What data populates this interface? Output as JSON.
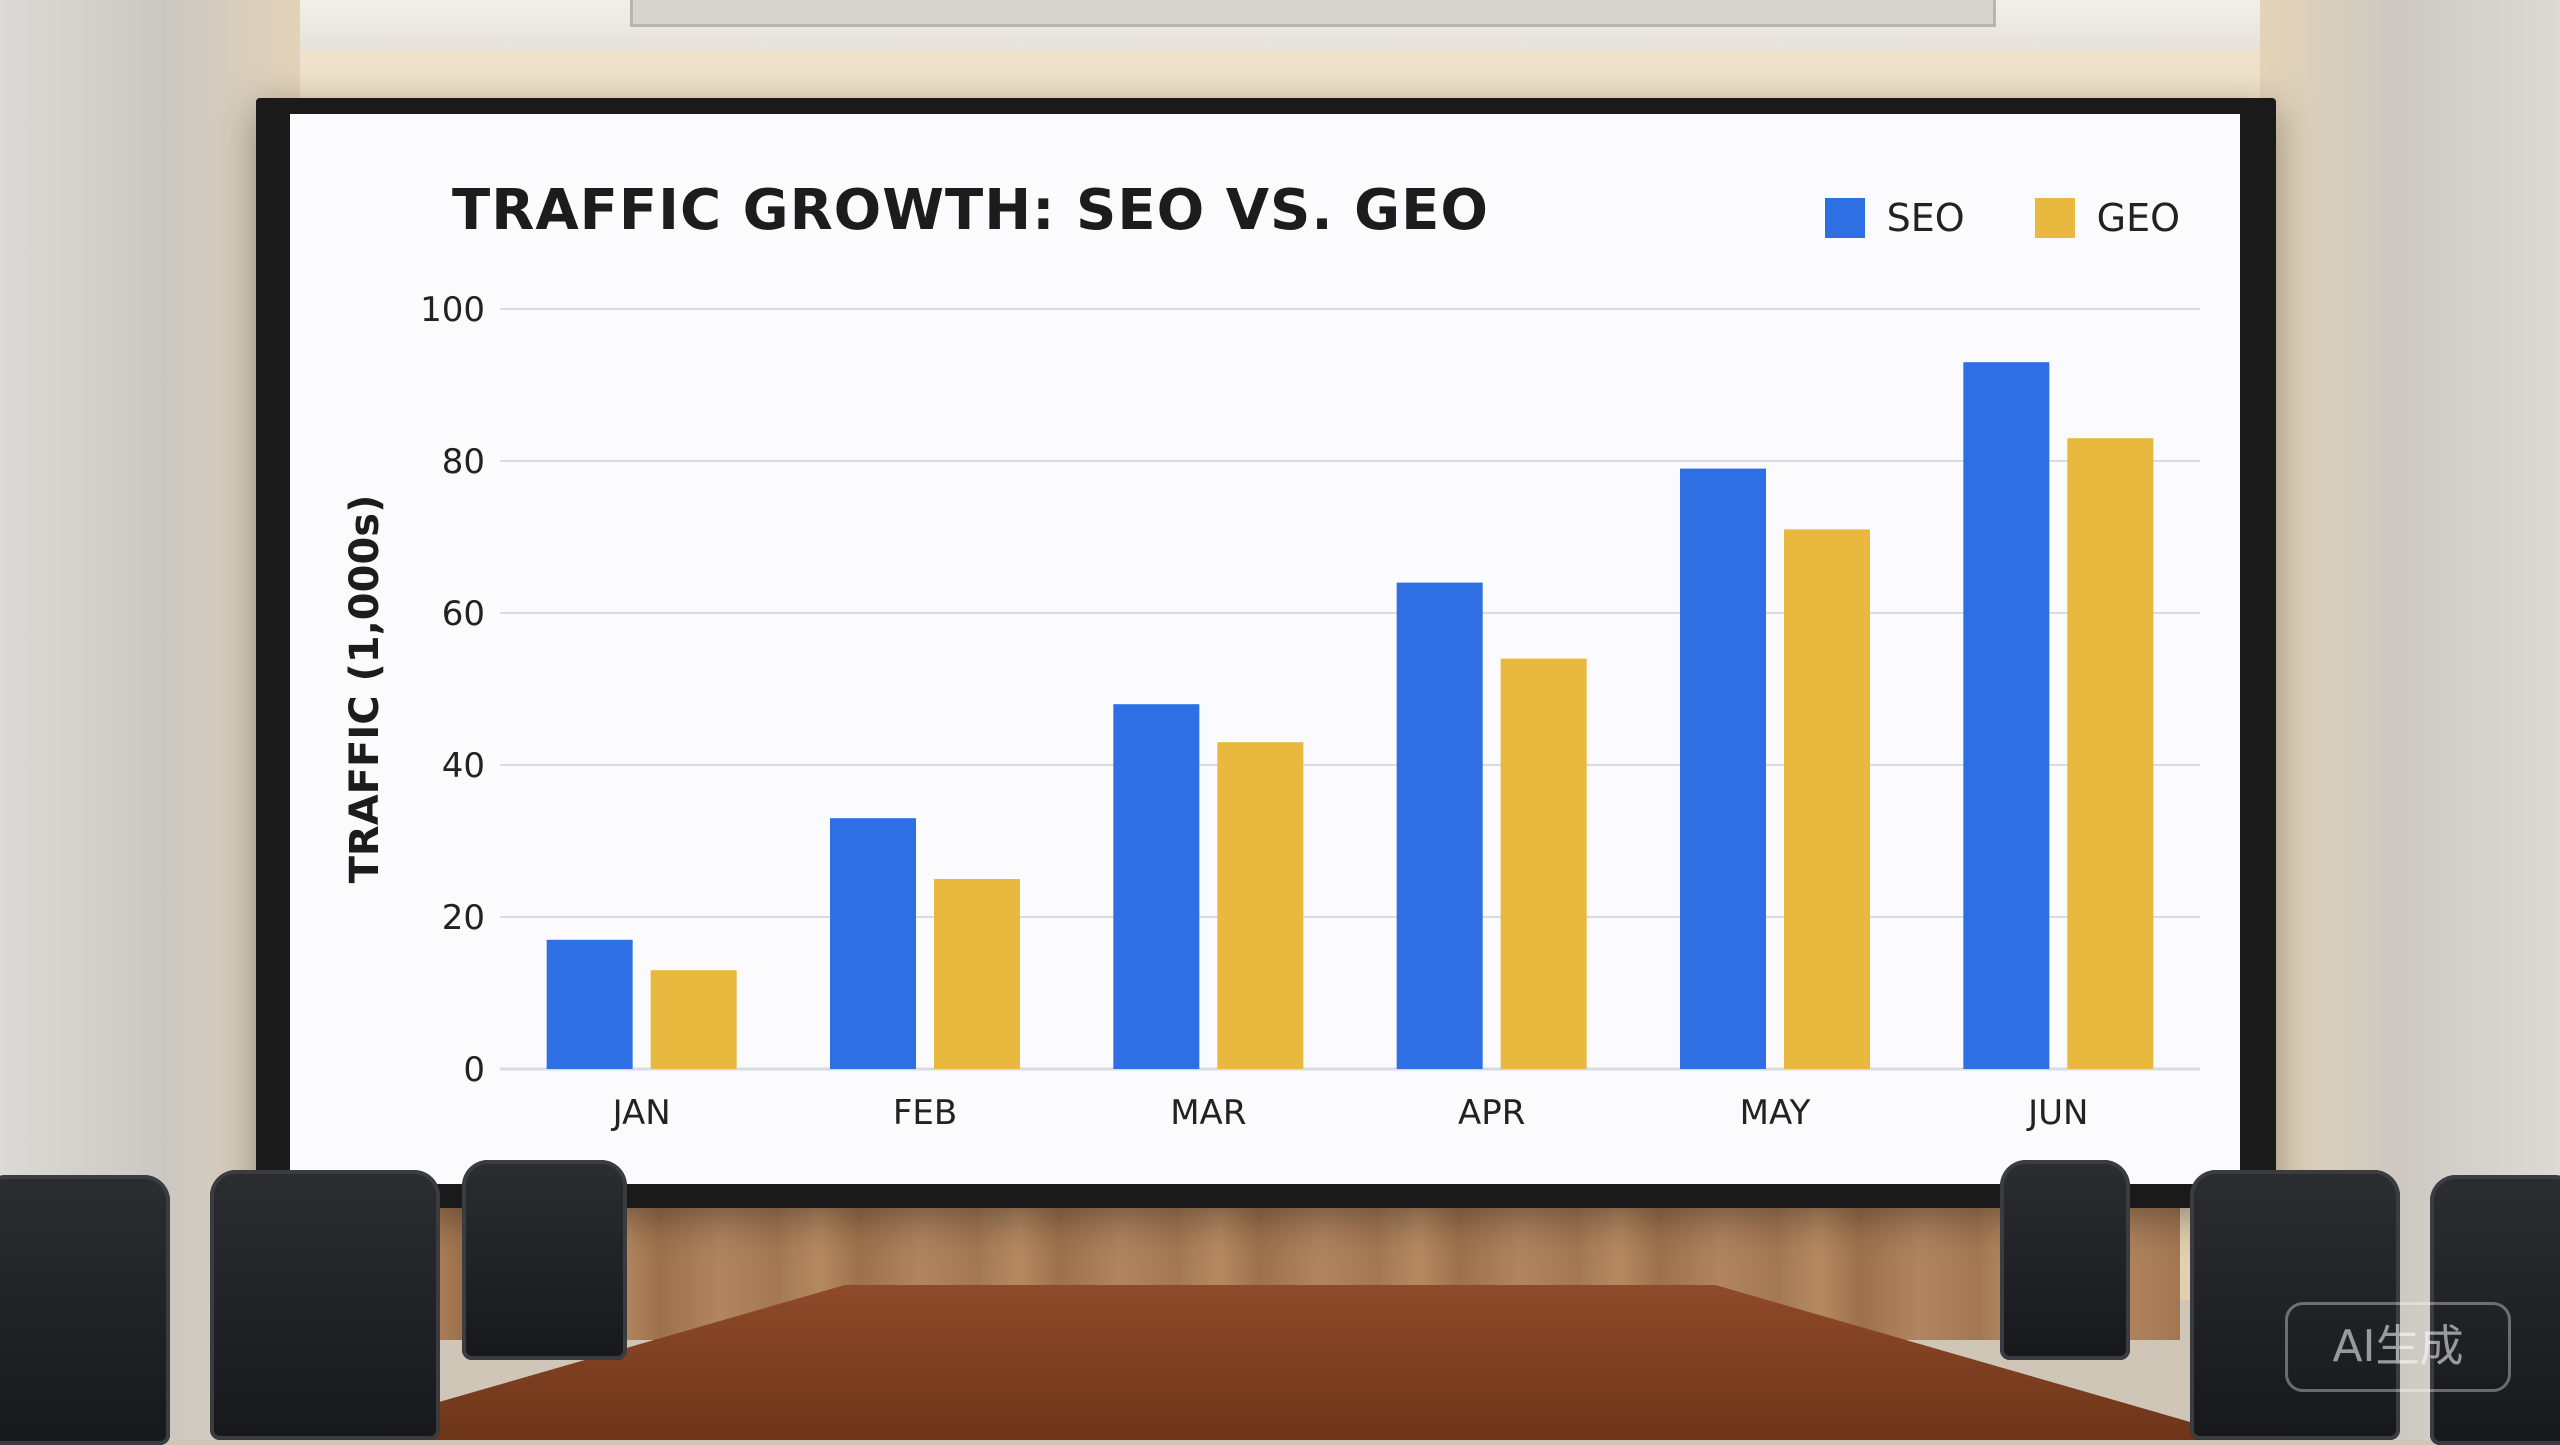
{
  "watermark": "AI生成",
  "colors": {
    "seo": "#2f6fe4",
    "geo": "#e8b83f",
    "grid": "#d9dbe3"
  },
  "chart_data": {
    "type": "bar",
    "title": "TRAFFIC GROWTH: SEO VS. GEO",
    "ylabel": "TRAFFIC (1,000s)",
    "xlabel": "",
    "categories": [
      "JAN",
      "FEB",
      "MAR",
      "APR",
      "MAY",
      "JUN"
    ],
    "series": [
      {
        "name": "SEO",
        "values": [
          17,
          33,
          48,
          64,
          79,
          93
        ]
      },
      {
        "name": "GEO",
        "values": [
          13,
          25,
          43,
          54,
          71,
          83
        ]
      }
    ],
    "ylim": [
      0,
      100
    ],
    "yticks": [
      "0",
      "20",
      "40",
      "60",
      "80",
      "100"
    ],
    "grid": true,
    "legend": "top-right"
  }
}
